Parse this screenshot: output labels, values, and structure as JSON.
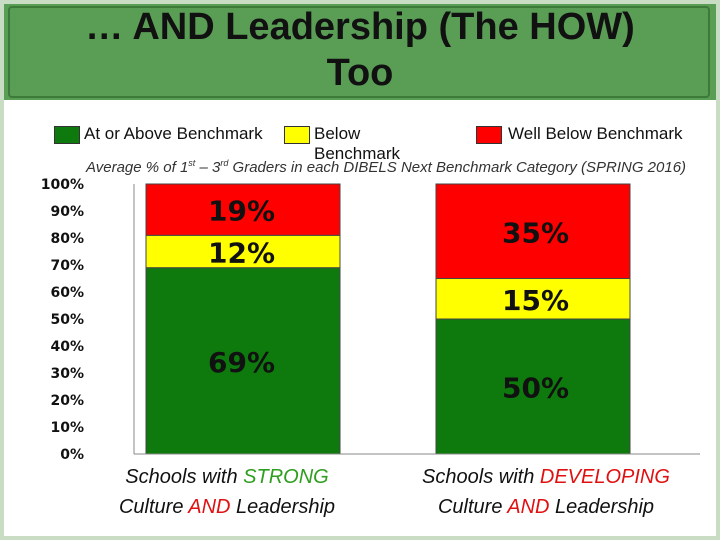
{
  "slide": {
    "title_line1": "… AND Leadership (The HOW)",
    "title_line2": "Too"
  },
  "legend": [
    {
      "label": "At or Above Benchmark",
      "color": "#0e7a0e"
    },
    {
      "label": "Below Benchmark",
      "color": "#ffff00"
    },
    {
      "label": "Well Below Benchmark",
      "color": "#ff0000"
    }
  ],
  "subtitle": {
    "part1": "Average % of 1",
    "sup1": "st",
    "part2": " – 3",
    "sup2": "rd",
    "part3": " Graders in each DIBELS Next Benchmark Category (SPRING 2016)"
  },
  "categories": [
    {
      "line1_prefix": "Schools with ",
      "line1_highlight": "STRONG",
      "highlight_color": "#2e9e1e",
      "line2_prefix": "Culture ",
      "line2_highlight": "AND",
      "line2_suffix": " Leadership"
    },
    {
      "line1_prefix": "Schools with ",
      "line1_highlight": "DEVELOPING",
      "highlight_color": "#e01010",
      "line2_prefix": "Culture ",
      "line2_highlight": "AND",
      "line2_suffix": " Leadership"
    }
  ],
  "chart_data": {
    "type": "bar",
    "stacked": true,
    "categories": [
      "Schools with STRONG Culture AND Leadership",
      "Schools with DEVELOPING Culture AND Leadership"
    ],
    "series": [
      {
        "name": "At or Above Benchmark",
        "color": "#0e7a0e",
        "values": [
          69,
          50
        ]
      },
      {
        "name": "Below Benchmark",
        "color": "#ffff00",
        "values": [
          12,
          15
        ]
      },
      {
        "name": "Well Below Benchmark",
        "color": "#ff0000",
        "values": [
          19,
          35
        ]
      }
    ],
    "data_labels": [
      [
        "69%",
        "12%",
        "19%"
      ],
      [
        "50%",
        "15%",
        "35%"
      ]
    ],
    "ylim": [
      0,
      100
    ],
    "yticks": [
      "0%",
      "10%",
      "20%",
      "30%",
      "40%",
      "50%",
      "60%",
      "70%",
      "80%",
      "90%",
      "100%"
    ],
    "ytick_values": [
      0,
      10,
      20,
      30,
      40,
      50,
      60,
      70,
      80,
      90,
      100
    ],
    "grid": false,
    "legend_position": "top"
  }
}
